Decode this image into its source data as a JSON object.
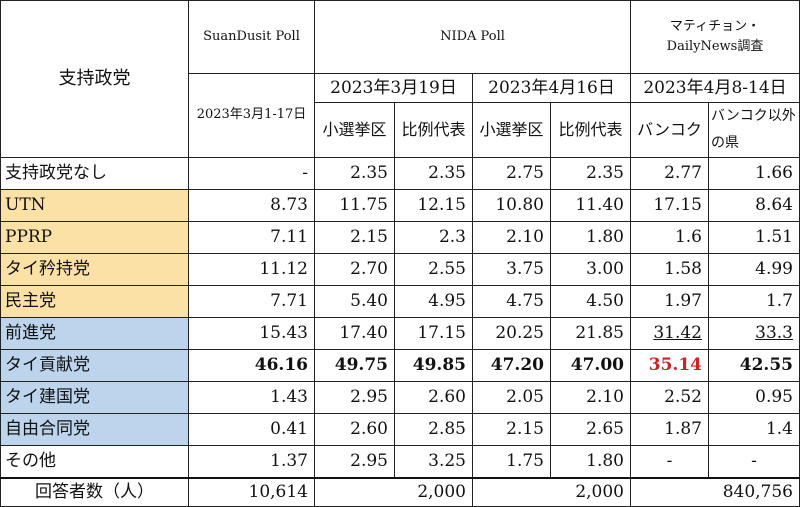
{
  "colors": {
    "coalition_group": "#fbe1a5",
    "opposition_group": "#bcd5ec",
    "highlight_red": "#cc2222"
  },
  "header": {
    "corner_label": "支持政党",
    "suandusit": {
      "title": "SuanDusit Poll",
      "date": "2023年3月1-17日"
    },
    "nida": {
      "title": "NIDA Poll",
      "date1": "2023年3月19日",
      "date2": "2023年4月16日",
      "sub_district": "小選挙区",
      "sub_party_list": "比例代表"
    },
    "matichon": {
      "title_line1": "マティチョン・",
      "title_line2": "DailyNews調査",
      "date": "2023年4月8-14日",
      "sub_bangkok": "バンコク",
      "sub_other": "バンコク以外の県"
    }
  },
  "rows": [
    {
      "party": "支持政党なし",
      "group": "none",
      "values": [
        "-",
        "2.35",
        "2.35",
        "2.75",
        "2.35",
        "2.77",
        "1.66"
      ]
    },
    {
      "party": "UTN",
      "group": "coalition",
      "values": [
        "8.73",
        "11.75",
        "12.15",
        "10.80",
        "11.40",
        "17.15",
        "8.64"
      ]
    },
    {
      "party": "PPRP",
      "group": "coalition",
      "values": [
        "7.11",
        "2.15",
        "2.3",
        "2.10",
        "1.80",
        "1.6",
        "1.51"
      ]
    },
    {
      "party": "タイ矜持党",
      "group": "coalition",
      "values": [
        "11.12",
        "2.70",
        "2.55",
        "3.75",
        "3.00",
        "1.58",
        "4.99"
      ]
    },
    {
      "party": "民主党",
      "group": "coalition",
      "values": [
        "7.71",
        "5.40",
        "4.95",
        "4.75",
        "4.50",
        "1.97",
        "1.7"
      ]
    },
    {
      "party": "前進党",
      "group": "opposition",
      "values": [
        "15.43",
        "17.40",
        "17.15",
        "20.25",
        "21.85",
        "31.42",
        "33.3"
      ]
    },
    {
      "party": "タイ貢献党",
      "group": "opposition",
      "values": [
        "46.16",
        "49.75",
        "49.85",
        "47.20",
        "47.00",
        "35.14",
        "42.55"
      ]
    },
    {
      "party": "タイ建国党",
      "group": "opposition",
      "values": [
        "1.43",
        "2.95",
        "2.60",
        "2.05",
        "2.10",
        "2.52",
        "0.95"
      ]
    },
    {
      "party": "自由合同党",
      "group": "opposition",
      "values": [
        "0.41",
        "2.60",
        "2.85",
        "2.15",
        "2.65",
        "1.87",
        "1.4"
      ]
    },
    {
      "party": "その他",
      "group": "none",
      "values": [
        "1.37",
        "2.95",
        "3.25",
        "1.75",
        "1.80",
        "-",
        "-"
      ]
    }
  ],
  "total": {
    "label": "回答者数（人）",
    "suandusit": "10,614",
    "nida1": "2,000",
    "nida2": "2,000",
    "matichon": "840,756"
  }
}
